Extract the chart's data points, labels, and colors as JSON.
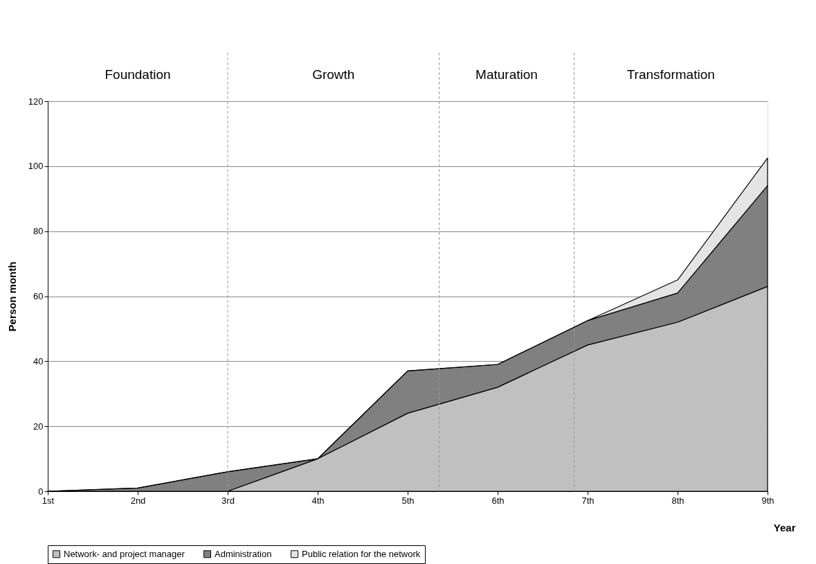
{
  "chart_data": {
    "type": "area",
    "stacked": true,
    "x": [
      1,
      2,
      3,
      4,
      5,
      6,
      7,
      8,
      9
    ],
    "xticks": [
      {
        "value": 1,
        "label": "1st"
      },
      {
        "value": 2,
        "label": "2nd"
      },
      {
        "value": 3,
        "label": "3rd"
      },
      {
        "value": 4,
        "label": "4th"
      },
      {
        "value": 5,
        "label": "5th"
      },
      {
        "value": 6,
        "label": "6th"
      },
      {
        "value": 7,
        "label": "7th"
      },
      {
        "value": 8,
        "label": "8th"
      },
      {
        "value": 9,
        "label": "9th"
      }
    ],
    "xlim": [
      1,
      9
    ],
    "ylim": [
      0,
      120
    ],
    "yticks": [
      0,
      20,
      40,
      60,
      80,
      100,
      120
    ],
    "xlabel": "Year",
    "ylabel": "Person month",
    "grid": "y",
    "legend": "bottom",
    "series": [
      {
        "name": "Network- and project manager",
        "color": "#c0c0c0",
        "values": [
          0,
          0,
          0,
          10,
          24,
          32,
          45,
          52,
          63
        ]
      },
      {
        "name": "Administration",
        "color": "#808080",
        "values": [
          0,
          1,
          6,
          0,
          13,
          7,
          7.5,
          9,
          31
        ]
      },
      {
        "name": "Public relation for the network",
        "color": "#e4e4e4",
        "values": [
          0,
          0,
          0,
          0,
          0,
          0,
          0,
          4,
          8.5
        ]
      }
    ],
    "ref_lines": [
      {
        "axis": "x",
        "value": 3,
        "line_style": "dashed",
        "color": "#999999"
      },
      {
        "axis": "x",
        "value": 5.35,
        "line_style": "dashed",
        "color": "#999999"
      },
      {
        "axis": "x",
        "value": 6.85,
        "line_style": "dashed",
        "color": "#999999"
      }
    ],
    "annotations": [
      "Foundation",
      "Growth",
      "Maturation",
      "Transformation"
    ]
  }
}
